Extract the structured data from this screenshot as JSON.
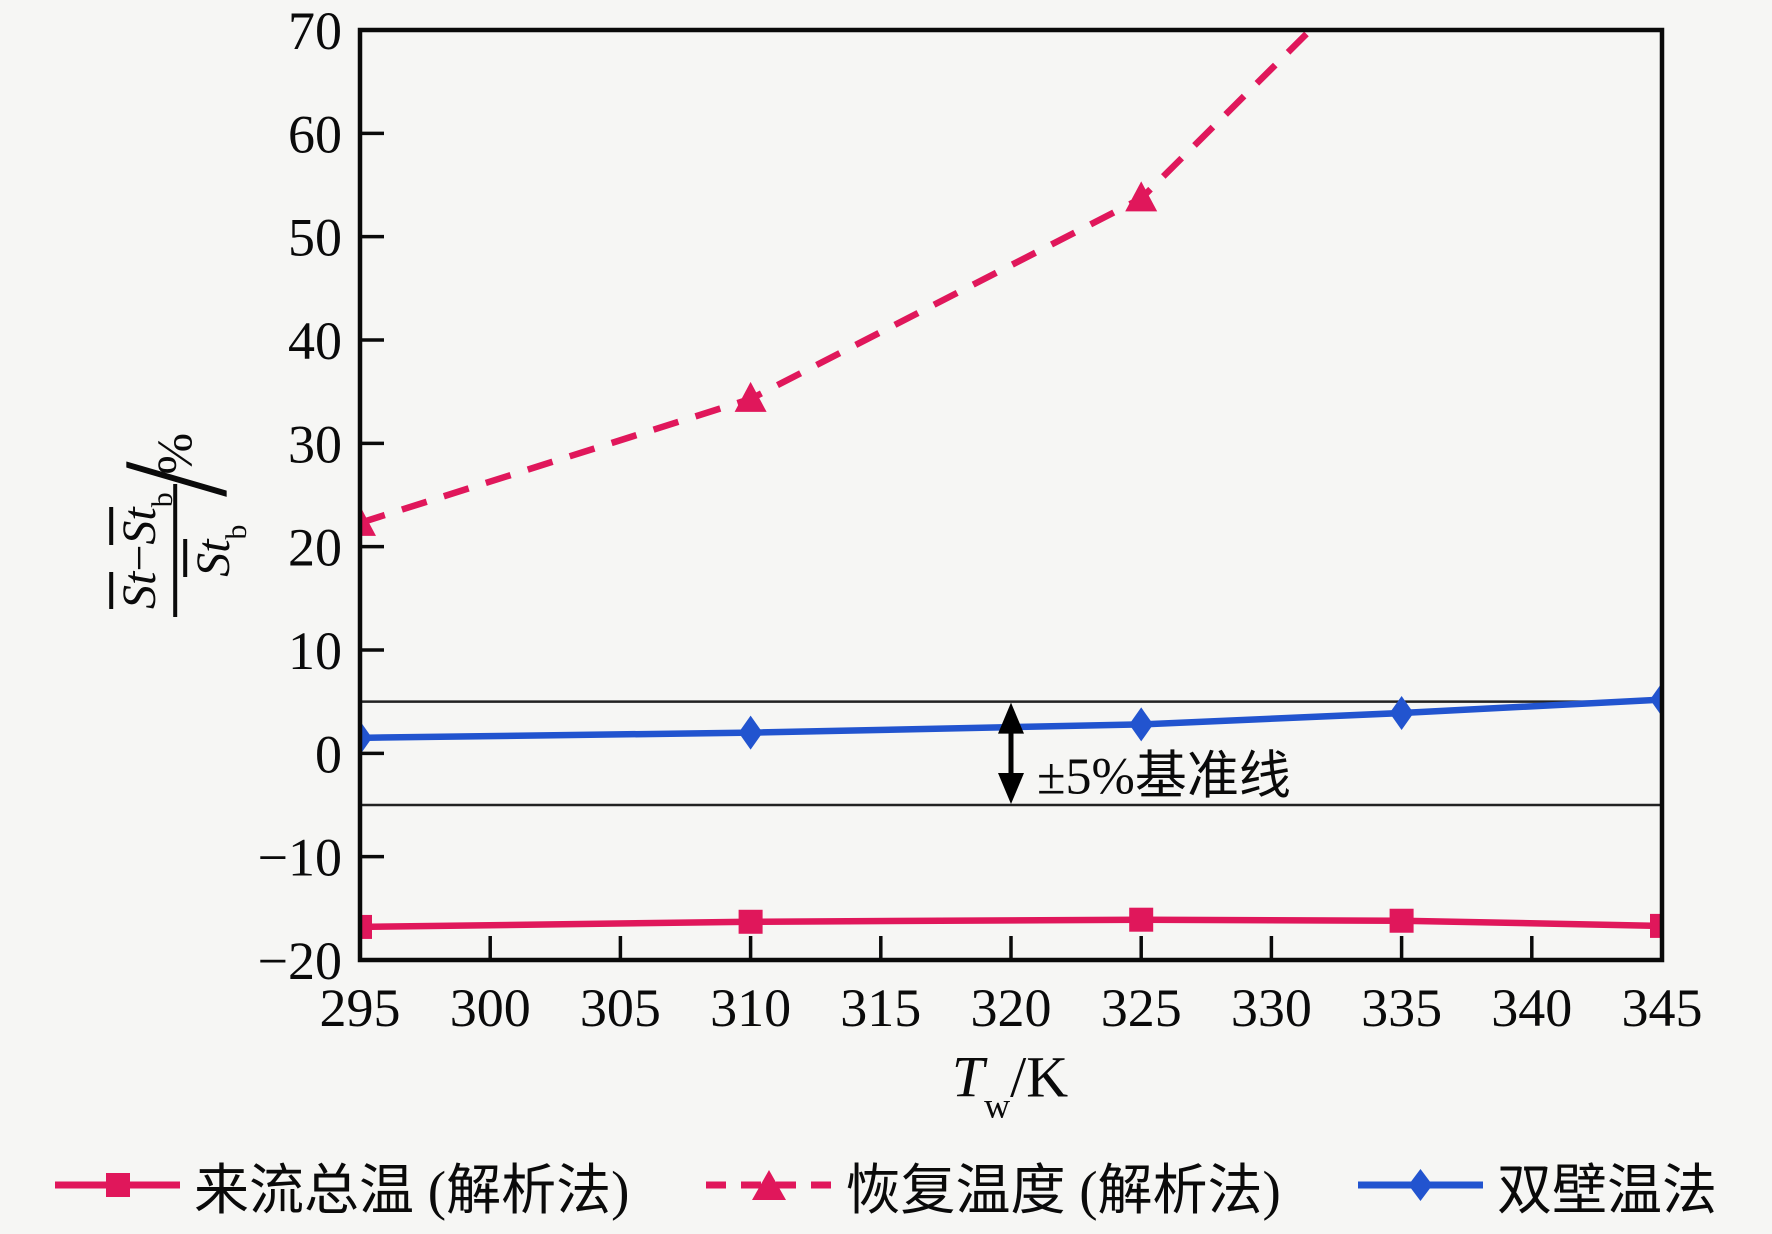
{
  "figure": {
    "background": "#f6f6f4",
    "axis_color": "#0a0a0a"
  },
  "axis_labels": {
    "st": "St",
    "sub_b": "b",
    "minus": "−",
    "percent": "%",
    "x_main": "T",
    "x_sub": "w",
    "x_unit": "/K"
  },
  "chart_data": {
    "type": "line",
    "title": "",
    "xlabel": "T_w/K",
    "ylabel": "(St̄ − St̄_b)/St̄_b / %",
    "xlim": [
      295,
      345
    ],
    "ylim": [
      -20,
      70
    ],
    "x_ticks": [
      295,
      300,
      305,
      310,
      315,
      320,
      325,
      330,
      335,
      340,
      345
    ],
    "y_ticks": [
      -20,
      -10,
      0,
      10,
      20,
      30,
      40,
      50,
      60,
      70
    ],
    "grid": false,
    "legend_position": "bottom",
    "reference_lines": {
      "values": [
        5,
        -5
      ],
      "color": "#222222",
      "arrow_x": 320,
      "label": "±5%基准线"
    },
    "series": [
      {
        "name": "来流总温 (解析法)",
        "color": "#e0175b",
        "style": "solid",
        "marker": "square",
        "x": [
          295,
          310,
          325,
          335,
          345
        ],
        "y": [
          -16.8,
          -16.3,
          -16.1,
          -16.2,
          -16.7
        ]
      },
      {
        "name": "恢复温度 (解析法)",
        "color": "#e0175b",
        "style": "dashed",
        "marker": "triangle",
        "marker_count": 3,
        "x": [
          295,
          310,
          325,
          331.5
        ],
        "y": [
          22.3,
          34.3,
          53.7,
          70
        ]
      },
      {
        "name": "双壁温法",
        "color": "#2254cf",
        "style": "solid",
        "marker": "diamond",
        "x": [
          295,
          310,
          325,
          335,
          345
        ],
        "y": [
          1.5,
          2.0,
          2.8,
          3.9,
          5.2
        ]
      }
    ]
  }
}
